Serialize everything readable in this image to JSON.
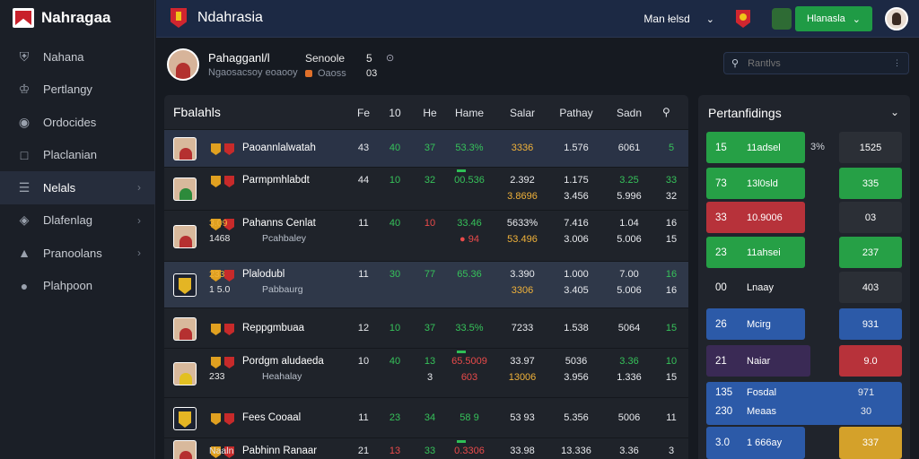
{
  "app": {
    "logo_text": "Nahragaa"
  },
  "sidebar": {
    "items": [
      {
        "label": "Nahana",
        "icon": "club-shield-icon",
        "chevron": false
      },
      {
        "label": "Pertlangy",
        "icon": "trophy-icon",
        "chevron": false
      },
      {
        "label": "Ordocides",
        "icon": "ball-icon",
        "chevron": false
      },
      {
        "label": "Placlanian",
        "icon": "square-icon",
        "chevron": false
      },
      {
        "label": "Nelals",
        "icon": "list-icon",
        "chevron": true
      },
      {
        "label": "Dlafenlag",
        "icon": "tag-icon",
        "chevron": true
      },
      {
        "label": "Pranoolans",
        "icon": "badge-icon",
        "chevron": true
      },
      {
        "label": "Plahpoon",
        "icon": "user-icon",
        "chevron": false
      }
    ]
  },
  "topbar": {
    "title": "Ndahrasia",
    "menu_label": "Man łel\u0001sd",
    "button_label": "Hlanasla",
    "button_chevron": "⌄",
    "brand_color": "#1c2944",
    "accent_color": "#1f9b45"
  },
  "profile": {
    "name": "Pahagganl/l",
    "subtitle": "Ngaosacsoy eoaooy",
    "stat1_label": "Senoole",
    "stat1_sub": "Oaoss",
    "stat2_label": "5",
    "stat2_sub": "03",
    "stat2_icon": "⊙"
  },
  "search": {
    "placeholder": "Rantlvs"
  },
  "table": {
    "title": "Fbalahls",
    "columns": [
      "Fe",
      "10",
      "He",
      "Hame",
      "Salar",
      "Pathay",
      "Sadn"
    ],
    "rows": [
      {
        "name": "Paoannlalwatah",
        "sub": "",
        "cells": [
          "43",
          "40",
          "37",
          "53.3%",
          "3336",
          "1.576",
          "6061",
          "5"
        ]
      },
      {
        "name": "Parmpmhlabdt",
        "sub": "",
        "cells": [
          "44",
          "10",
          "32",
          "00.536",
          "2.392",
          "1.175",
          "3.25",
          "33"
        ],
        "cells2": [
          "",
          "",
          "",
          "",
          "3.8696",
          "3.456",
          "5.996",
          "32"
        ]
      },
      {
        "name": "Pahanns Cenlat",
        "sub": "Pcahbaley",
        "pre": "1468",
        "pre_top": "3.09",
        "cells": [
          "11",
          "40",
          "10",
          "33.46",
          "5633%",
          "7.416",
          "1.04",
          "16"
        ],
        "cells2": [
          "",
          "",
          "",
          "● 94",
          "53.496",
          "3.006",
          "5.006",
          "15"
        ]
      },
      {
        "name": "Plalodubl",
        "sub": "Pabbaurg",
        "pre": "1 5.0",
        "pre_top": "233",
        "cells": [
          "11",
          "30",
          "77",
          "65.36",
          "3.390",
          "1.000",
          "7.00",
          "16"
        ],
        "cells2": [
          "",
          "",
          "",
          "",
          "3306",
          "3.405",
          "5.006",
          "16"
        ]
      },
      {
        "name": "Reppgmbuaa",
        "sub": "",
        "cells": [
          "12",
          "10",
          "37",
          "33.5%",
          "7233",
          "1.538",
          "5064",
          "15"
        ]
      },
      {
        "name": "Pordgm aludaeda",
        "sub": "Heahalay",
        "pre": "233",
        "cells": [
          "10",
          "40",
          "13",
          "65.5009",
          "33.97",
          "5036",
          "3.36",
          "10"
        ],
        "cells2": [
          "",
          "",
          "3",
          "603",
          "13006",
          "3.956",
          "1.336",
          "15"
        ]
      },
      {
        "name": "Fees Cooaal",
        "sub": "",
        "cells": [
          "11",
          "23",
          "34",
          "58 9",
          "53 93",
          "5.356",
          "5006",
          "11"
        ]
      },
      {
        "name": "Pabhinn Ranaar",
        "sub": "",
        "pre": "Naaln",
        "cells": [
          "21",
          "13",
          "33",
          "0.3306",
          "33.98",
          "13.336",
          "3.36",
          "3"
        ]
      }
    ]
  },
  "standings": {
    "title": "Pertanfidings",
    "rows": [
      {
        "n1": "15",
        "n2": "11adsel",
        "mid": "3%",
        "val": "1525",
        "bar_color": "#26a046",
        "val_color": "#2b2f36",
        "bar_frac": 0.5
      },
      {
        "n1": "73",
        "n2": "13l0sld",
        "mid": "",
        "val": "335",
        "bar_color": "#26a046",
        "val_color": "#26a046",
        "bar_frac": 0.52
      },
      {
        "n1": "33",
        "n2": "10.9006",
        "mid": "",
        "val": "03",
        "bar_color": "#b7323a",
        "val_color": "#2b2f36",
        "bar_frac": 0.52
      },
      {
        "n1": "23",
        "n2": "11ahsei",
        "mid": "",
        "val": "237",
        "bar_color": "#26a046",
        "val_color": "#26a046",
        "bar_frac": 0.52
      },
      {
        "n1": "00",
        "n2": "Lnaay",
        "mid": "",
        "val": "403",
        "bar_color": "#20242c",
        "val_color": "#2b2f36",
        "bar_frac": 0.52
      },
      {
        "n1": "26",
        "n2": "Mcirg",
        "mid": "",
        "val": "931",
        "bar_color": "#2c5aa8",
        "val_color": "#2c5aa8",
        "bar_frac": 0.52
      },
      {
        "n1": "21",
        "n2": "Naiar",
        "mid": "",
        "val": "9.0",
        "bar_color": "#3a2a55",
        "val_color": "#b7323a",
        "bar_frac": 0.62
      },
      {
        "n1": "135",
        "n2": "Fosdal",
        "n1b": "230",
        "n2b": "Meaas",
        "mid": "",
        "val": "971",
        "valb": "30",
        "bar_color": "#2c5aa8",
        "val_color": "#2c5aa8",
        "bar_frac": 1.0
      },
      {
        "n1": "3.0",
        "n2": "1 666ay",
        "mid": "",
        "val": "337",
        "bar_color": "#2c5aa8",
        "val_color": "#d4a12a",
        "bar_frac": 0.52
      }
    ]
  }
}
